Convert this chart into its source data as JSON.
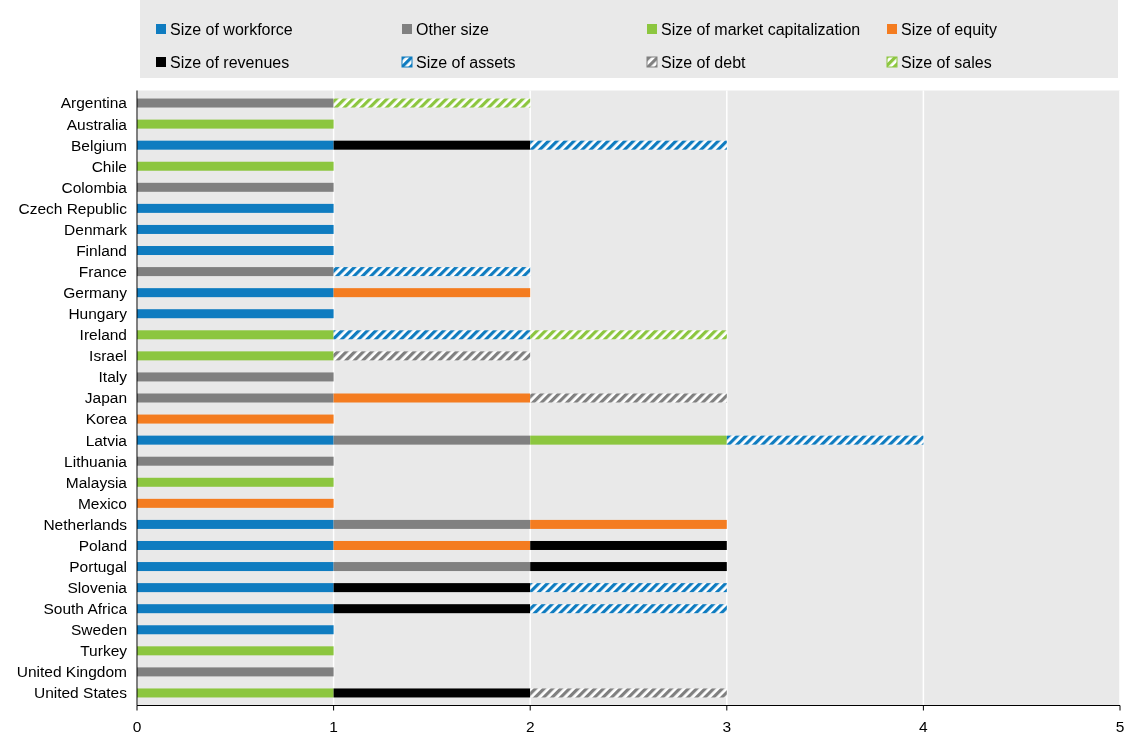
{
  "chart_data": {
    "type": "bar",
    "orientation": "horizontal",
    "stacked": true,
    "legend": "top",
    "grid": "x",
    "categories": [
      "Argentina",
      "Australia",
      "Belgium",
      "Chile",
      "Colombia",
      "Czech Republic",
      "Denmark",
      "Finland",
      "France",
      "Germany",
      "Hungary",
      "Ireland",
      "Israel",
      "Italy",
      "Japan",
      "Korea",
      "Latvia",
      "Lithuania",
      "Malaysia",
      "Mexico",
      "Netherlands",
      "Poland",
      "Portugal",
      "Slovenia",
      "South Africa",
      "Sweden",
      "Turkey",
      "United Kingdom",
      "United States"
    ],
    "xlim": [
      0,
      5
    ],
    "xticks": [
      0,
      1,
      2,
      3,
      4,
      5
    ],
    "series": [
      {
        "name": "Size of workforce",
        "color": "#0f7cc0",
        "values": [
          0,
          0,
          1,
          0,
          0,
          1,
          1,
          1,
          0,
          1,
          1,
          0,
          0,
          0,
          0,
          0,
          1,
          0,
          0,
          0,
          1,
          1,
          1,
          1,
          1,
          1,
          0,
          0,
          0
        ]
      },
      {
        "name": "Other size",
        "color": "#808080",
        "values": [
          1,
          0,
          0,
          0,
          1,
          0,
          0,
          0,
          1,
          0,
          0,
          0,
          0,
          1,
          1,
          0,
          1,
          1,
          0,
          0,
          1,
          0,
          1,
          0,
          0,
          0,
          0,
          1,
          0
        ]
      },
      {
        "name": "Size of market capitalization",
        "color": "#8cc63f",
        "values": [
          0,
          1,
          0,
          1,
          0,
          0,
          0,
          0,
          0,
          0,
          0,
          1,
          1,
          0,
          0,
          0,
          1,
          0,
          1,
          0,
          0,
          0,
          0,
          0,
          0,
          0,
          1,
          0,
          1
        ]
      },
      {
        "name": "Size of equity",
        "color": "#f47c20",
        "values": [
          0,
          0,
          0,
          0,
          0,
          0,
          0,
          0,
          0,
          1,
          0,
          0,
          0,
          0,
          1,
          1,
          0,
          0,
          0,
          1,
          1,
          1,
          0,
          0,
          0,
          0,
          0,
          0,
          0
        ]
      },
      {
        "name": "Size of revenues",
        "color": "#000000",
        "values": [
          0,
          0,
          1,
          0,
          0,
          0,
          0,
          0,
          0,
          0,
          0,
          0,
          0,
          0,
          0,
          0,
          0,
          0,
          0,
          0,
          0,
          1,
          1,
          1,
          1,
          0,
          0,
          0,
          1
        ]
      },
      {
        "name": "Size of assets",
        "color": "#0f7cc0",
        "values": [
          0,
          0,
          1,
          0,
          0,
          0,
          0,
          0,
          1,
          0,
          0,
          1,
          0,
          0,
          0,
          0,
          1,
          0,
          0,
          0,
          0,
          0,
          0,
          1,
          1,
          0,
          0,
          0,
          0
        ]
      },
      {
        "name": "Size of debt",
        "color": "#808080",
        "values": [
          0,
          0,
          0,
          0,
          0,
          0,
          0,
          0,
          0,
          0,
          0,
          0,
          1,
          0,
          1,
          0,
          0,
          0,
          0,
          0,
          0,
          0,
          0,
          0,
          0,
          0,
          0,
          0,
          1
        ]
      },
      {
        "name": "Size of sales",
        "color": "#8cc63f",
        "values": [
          1,
          0,
          0,
          0,
          0,
          0,
          0,
          0,
          0,
          0,
          0,
          1,
          0,
          0,
          0,
          0,
          0,
          0,
          0,
          0,
          0,
          0,
          0,
          0,
          0,
          0,
          0,
          0,
          0
        ]
      }
    ]
  }
}
